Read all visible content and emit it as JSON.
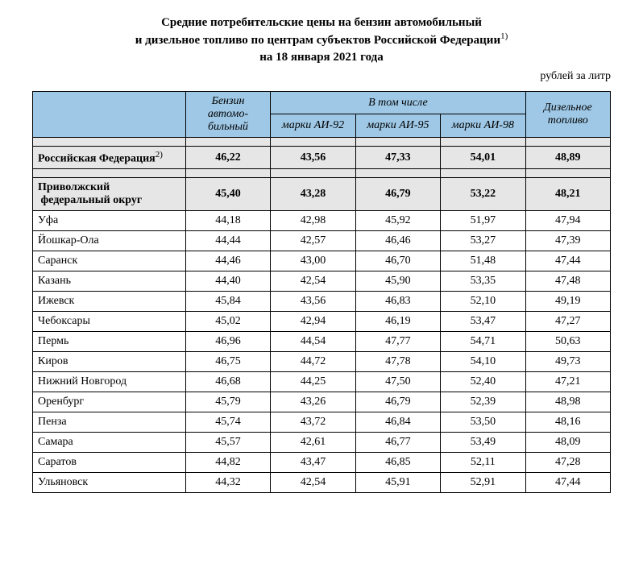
{
  "title": {
    "line1": "Средние потребительские цены на бензин автомобильный",
    "line2_pre": "и дизельное топливо по центрам субъектов Российской Федерации",
    "line2_sup": "1)",
    "line3": "на 18 января 2021 года"
  },
  "unit_label": "рублей за литр",
  "table": {
    "type": "table",
    "header_bg": "#9ec8e6",
    "summary_bg": "#e6e6e6",
    "border_color": "#000000",
    "columns": {
      "benzin": "Бензин автомо-бильный",
      "group": "В том числе",
      "ai92": "марки АИ-92",
      "ai95": "марки АИ-95",
      "ai98": "марки АИ-98",
      "diesel": "Дизельное топливо"
    },
    "summary_rows": [
      {
        "label": "Российская Федерация",
        "sup": "2)",
        "benzin": "46,22",
        "ai92": "43,56",
        "ai95": "47,33",
        "ai98": "54,01",
        "diesel": "48,89"
      },
      {
        "label": "Приволжский федеральный округ",
        "sup": "",
        "benzin": "45,40",
        "ai92": "43,28",
        "ai95": "46,79",
        "ai98": "53,22",
        "diesel": "48,21"
      }
    ],
    "rows": [
      {
        "label": "Уфа",
        "benzin": "44,18",
        "ai92": "42,98",
        "ai95": "45,92",
        "ai98": "51,97",
        "diesel": "47,94"
      },
      {
        "label": "Йошкар-Ола",
        "benzin": "44,44",
        "ai92": "42,57",
        "ai95": "46,46",
        "ai98": "53,27",
        "diesel": "47,39"
      },
      {
        "label": "Саранск",
        "benzin": "44,46",
        "ai92": "43,00",
        "ai95": "46,70",
        "ai98": "51,48",
        "diesel": "47,44"
      },
      {
        "label": "Казань",
        "benzin": "44,40",
        "ai92": "42,54",
        "ai95": "45,90",
        "ai98": "53,35",
        "diesel": "47,48"
      },
      {
        "label": "Ижевск",
        "benzin": "45,84",
        "ai92": "43,56",
        "ai95": "46,83",
        "ai98": "52,10",
        "diesel": "49,19"
      },
      {
        "label": "Чебоксары",
        "benzin": "45,02",
        "ai92": "42,94",
        "ai95": "46,19",
        "ai98": "53,47",
        "diesel": "47,27"
      },
      {
        "label": "Пермь",
        "benzin": "46,96",
        "ai92": "44,54",
        "ai95": "47,77",
        "ai98": "54,71",
        "diesel": "50,63"
      },
      {
        "label": "Киров",
        "benzin": "46,75",
        "ai92": "44,72",
        "ai95": "47,78",
        "ai98": "54,10",
        "diesel": "49,73"
      },
      {
        "label": "Нижний Новгород",
        "benzin": "46,68",
        "ai92": "44,25",
        "ai95": "47,50",
        "ai98": "52,40",
        "diesel": "47,21"
      },
      {
        "label": "Оренбург",
        "benzin": "45,79",
        "ai92": "43,26",
        "ai95": "46,79",
        "ai98": "52,39",
        "diesel": "48,98"
      },
      {
        "label": "Пенза",
        "benzin": "45,74",
        "ai92": "43,72",
        "ai95": "46,84",
        "ai98": "53,50",
        "diesel": "48,16"
      },
      {
        "label": "Самара",
        "benzin": "45,57",
        "ai92": "42,61",
        "ai95": "46,77",
        "ai98": "53,49",
        "diesel": "48,09"
      },
      {
        "label": "Саратов",
        "benzin": "44,82",
        "ai92": "43,47",
        "ai95": "46,85",
        "ai98": "52,11",
        "diesel": "47,28"
      },
      {
        "label": "Ульяновск",
        "benzin": "44,32",
        "ai92": "42,54",
        "ai95": "45,91",
        "ai98": "52,91",
        "diesel": "47,44"
      }
    ],
    "col_widths": [
      "180px",
      "100px",
      "100px",
      "100px",
      "100px",
      "100px"
    ],
    "font_family": "Times New Roman",
    "font_size_pt": 11
  }
}
